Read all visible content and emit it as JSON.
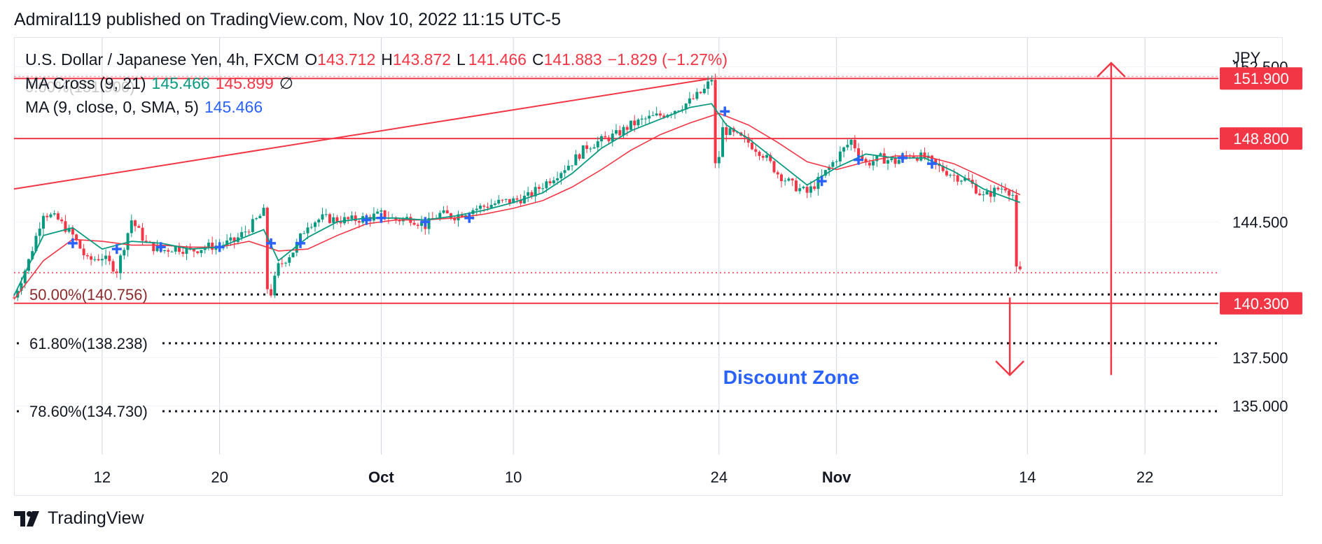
{
  "header": {
    "published": "Admiral119 published on TradingView.com, Nov 10, 2022 11:15 UTC-5"
  },
  "legend": {
    "symbol": "U.S. Dollar / Japanese Yen, 4h, FXCM",
    "o_label": "O",
    "o": "143.712",
    "h_label": "H",
    "h": "143.872",
    "l_label": "L",
    "l": "141.466",
    "c_label": "C",
    "c": "141.883",
    "change": "−1.829 (−1.27%)",
    "ma_cross_label": "MA Cross (9, 21)",
    "ma_cross_v1": "145.466",
    "ma_cross_v2": "145.899",
    "ma_cross_sym": "∅",
    "ma_label": "MA (9, close, 0, SMA, 5)",
    "ma_value": "145.466",
    "ghost_fib": "0.00%(151.900)"
  },
  "footer": {
    "brand": "TradingView"
  },
  "chart_data": {
    "type": "candlestick",
    "currency": "JPY",
    "x_ticks": [
      {
        "label": "12",
        "bold": false
      },
      {
        "label": "20",
        "bold": false
      },
      {
        "label": "Oct",
        "bold": true
      },
      {
        "label": "10",
        "bold": false
      },
      {
        "label": "24",
        "bold": false
      },
      {
        "label": "Nov",
        "bold": true
      },
      {
        "label": "14",
        "bold": false
      },
      {
        "label": "22",
        "bold": false
      }
    ],
    "x_tick_days": [
      12,
      20,
      31,
      40,
      54,
      62,
      75,
      83
    ],
    "y_ticks": [
      135.0,
      137.5,
      144.5,
      152.5
    ],
    "y_tick_labels": [
      "135.000",
      "137.500",
      "144.500",
      "152.500"
    ],
    "ylim": [
      132.5,
      154.0
    ],
    "price_tags": [
      {
        "label": "151.900",
        "value": 151.9
      },
      {
        "label": "148.800",
        "value": 148.8
      },
      {
        "label": "140.300",
        "value": 140.3
      }
    ],
    "horizontal_levels": [
      151.9,
      148.8,
      140.3
    ],
    "last_price_line": 141.88,
    "fibonacci": [
      {
        "label": "50.00%(140.756)",
        "value": 140.756
      },
      {
        "label": "61.80%(138.238)",
        "value": 138.238
      },
      {
        "label": "78.60%(134.730)",
        "value": 134.73
      }
    ],
    "trendline": {
      "start": [
        6,
        146.2
      ],
      "end": [
        53.5,
        151.9
      ]
    },
    "annotation": {
      "text": "Discount Zone"
    },
    "arrows": [
      {
        "direction": "down",
        "from": [
          73.8,
          140.6
        ],
        "to": [
          73.8,
          136.6
        ]
      },
      {
        "direction": "up",
        "from": [
          80.7,
          136.6
        ],
        "to": [
          80.7,
          152.7
        ]
      }
    ],
    "price_path": [
      [
        6,
        140.6
      ],
      [
        7,
        142.5
      ],
      [
        8,
        145.0
      ],
      [
        9,
        144.6
      ],
      [
        10,
        143.8
      ],
      [
        11,
        142.5
      ],
      [
        12,
        142.7
      ],
      [
        13,
        142.0
      ],
      [
        14,
        144.6
      ],
      [
        15,
        143.4
      ],
      [
        16,
        143.0
      ],
      [
        17,
        143.2
      ],
      [
        18,
        143.0
      ],
      [
        19,
        143.2
      ],
      [
        20,
        143.3
      ],
      [
        21,
        143.5
      ],
      [
        22,
        144.2
      ],
      [
        23,
        145.0
      ],
      [
        23.3,
        140.3
      ],
      [
        24,
        142.2
      ],
      [
        25,
        143.0
      ],
      [
        26,
        144.4
      ],
      [
        27,
        144.7
      ],
      [
        28,
        144.6
      ],
      [
        29,
        144.6
      ],
      [
        30,
        144.7
      ],
      [
        31,
        144.9
      ],
      [
        32,
        144.6
      ],
      [
        33,
        144.7
      ],
      [
        34,
        144.3
      ],
      [
        35,
        144.9
      ],
      [
        36,
        144.8
      ],
      [
        37,
        145.1
      ],
      [
        38,
        145.3
      ],
      [
        39,
        145.5
      ],
      [
        40,
        145.6
      ],
      [
        41,
        145.8
      ],
      [
        42,
        146.4
      ],
      [
        43,
        147.0
      ],
      [
        44,
        147.6
      ],
      [
        45,
        148.4
      ],
      [
        46,
        148.7
      ],
      [
        47,
        149.0
      ],
      [
        48,
        149.5
      ],
      [
        49,
        149.8
      ],
      [
        50,
        150.0
      ],
      [
        51,
        150.3
      ],
      [
        52,
        150.7
      ],
      [
        53,
        151.3
      ],
      [
        53.5,
        151.9
      ],
      [
        53.8,
        146.5
      ],
      [
        54.2,
        149.3
      ],
      [
        55,
        149.0
      ],
      [
        56,
        148.6
      ],
      [
        57,
        148.0
      ],
      [
        58,
        147.0
      ],
      [
        59,
        146.4
      ],
      [
        60,
        146.0
      ],
      [
        61,
        146.8
      ],
      [
        62,
        147.8
      ],
      [
        63,
        148.7
      ],
      [
        64,
        147.5
      ],
      [
        65,
        147.8
      ],
      [
        66,
        147.6
      ],
      [
        67,
        148.0
      ],
      [
        68,
        147.8
      ],
      [
        69,
        147.3
      ],
      [
        70,
        146.9
      ],
      [
        71,
        146.6
      ],
      [
        72,
        145.8
      ],
      [
        73,
        146.2
      ],
      [
        73.5,
        146.3
      ],
      [
        74,
        145.9
      ],
      [
        74.2,
        142.0
      ],
      [
        74.5,
        141.9
      ]
    ],
    "ma_fast": [
      [
        6,
        140.7
      ],
      [
        8,
        143.8
      ],
      [
        10,
        144.2
      ],
      [
        12,
        143.1
      ],
      [
        14,
        143.5
      ],
      [
        16,
        143.4
      ],
      [
        18,
        143.1
      ],
      [
        20,
        143.2
      ],
      [
        22,
        143.8
      ],
      [
        23,
        144.1
      ],
      [
        24,
        142.5
      ],
      [
        26,
        143.7
      ],
      [
        28,
        144.5
      ],
      [
        30,
        144.7
      ],
      [
        32,
        144.7
      ],
      [
        34,
        144.6
      ],
      [
        36,
        144.8
      ],
      [
        38,
        145.1
      ],
      [
        40,
        145.5
      ],
      [
        42,
        146.0
      ],
      [
        44,
        147.0
      ],
      [
        46,
        148.3
      ],
      [
        48,
        149.2
      ],
      [
        50,
        149.8
      ],
      [
        52,
        150.4
      ],
      [
        53.5,
        150.6
      ],
      [
        54.5,
        149.5
      ],
      [
        56,
        148.8
      ],
      [
        58,
        147.6
      ],
      [
        60,
        146.4
      ],
      [
        62,
        147.3
      ],
      [
        64,
        148.0
      ],
      [
        66,
        147.8
      ],
      [
        68,
        147.8
      ],
      [
        70,
        147.1
      ],
      [
        72,
        146.2
      ],
      [
        74.5,
        145.5
      ]
    ],
    "ma_slow": [
      [
        6,
        140.5
      ],
      [
        8,
        142.5
      ],
      [
        10,
        143.6
      ],
      [
        12,
        143.5
      ],
      [
        14,
        143.3
      ],
      [
        16,
        143.3
      ],
      [
        18,
        143.2
      ],
      [
        20,
        143.2
      ],
      [
        22,
        143.5
      ],
      [
        24,
        143.0
      ],
      [
        26,
        143.1
      ],
      [
        28,
        143.8
      ],
      [
        30,
        144.4
      ],
      [
        32,
        144.6
      ],
      [
        34,
        144.6
      ],
      [
        36,
        144.7
      ],
      [
        38,
        144.9
      ],
      [
        40,
        145.2
      ],
      [
        42,
        145.6
      ],
      [
        44,
        146.3
      ],
      [
        46,
        147.2
      ],
      [
        48,
        148.2
      ],
      [
        50,
        149.0
      ],
      [
        52,
        149.6
      ],
      [
        54,
        150.1
      ],
      [
        56,
        149.5
      ],
      [
        58,
        148.6
      ],
      [
        60,
        147.6
      ],
      [
        62,
        147.2
      ],
      [
        64,
        147.6
      ],
      [
        66,
        147.9
      ],
      [
        68,
        147.9
      ],
      [
        70,
        147.5
      ],
      [
        72,
        146.8
      ],
      [
        74.5,
        145.9
      ]
    ],
    "cross_markers": [
      [
        10,
        143.4
      ],
      [
        13,
        143.1
      ],
      [
        16,
        143.2
      ],
      [
        20,
        143.2
      ],
      [
        23.5,
        143.4
      ],
      [
        25.5,
        143.4
      ],
      [
        30,
        144.6
      ],
      [
        31,
        144.7
      ],
      [
        34,
        144.5
      ],
      [
        37,
        144.7
      ],
      [
        54.4,
        150.2
      ],
      [
        61,
        146.6
      ],
      [
        63.5,
        147.7
      ],
      [
        66.5,
        147.8
      ],
      [
        68.5,
        147.5
      ]
    ],
    "colors": {
      "up": "#089981",
      "down": "#f23645",
      "line": "#f23645",
      "cross": "#2962ff",
      "fib": "#131722",
      "annotation": "#2962ff"
    }
  }
}
